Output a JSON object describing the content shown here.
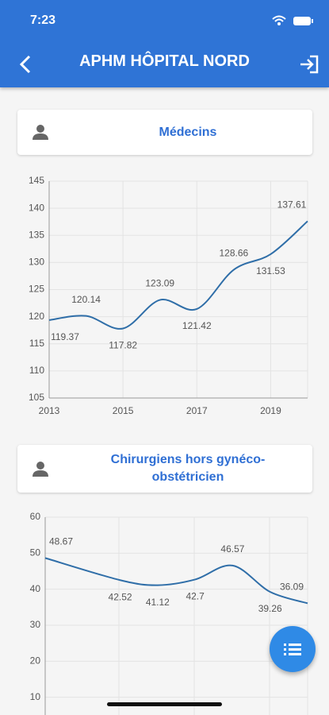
{
  "status_bar": {
    "time": "7:23"
  },
  "header": {
    "title": "APHM HÔPITAL NORD"
  },
  "cards": [
    {
      "title": "Médecins"
    },
    {
      "title": "Chirurgiens hors gynéco-obstétricien"
    }
  ],
  "chart_data": [
    {
      "type": "line",
      "x": [
        2013,
        2014,
        2015,
        2016,
        2017,
        2018,
        2019,
        2020
      ],
      "series": [
        {
          "color": "#2f6ea8",
          "values": [
            119.37,
            120.14,
            117.82,
            123.09,
            121.42,
            128.66,
            131.53,
            137.61
          ]
        }
      ],
      "xlim": [
        2013,
        2020
      ],
      "xticks": [
        2013,
        2015,
        2017,
        2019
      ],
      "ylim": [
        105,
        145
      ],
      "yticks": [
        105,
        110,
        115,
        120,
        125,
        130,
        135,
        140,
        145
      ],
      "grid": true
    },
    {
      "type": "line",
      "x": [
        2013,
        2015,
        2016,
        2017,
        2018,
        2019,
        2020
      ],
      "series": [
        {
          "color": "#2f6ea8",
          "values": [
            48.67,
            42.52,
            41.12,
            42.7,
            46.57,
            39.26,
            36.09
          ]
        }
      ],
      "xlim": [
        2013,
        2020
      ],
      "ylim": [
        0,
        60
      ],
      "yticks": [
        10,
        20,
        30,
        40,
        50,
        60
      ],
      "grid": true
    }
  ]
}
